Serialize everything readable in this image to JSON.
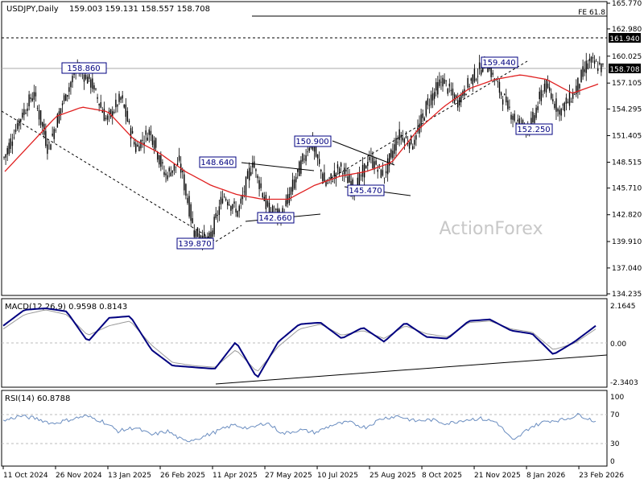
{
  "header": {
    "symbol": "USDJPY,Daily",
    "ohlc": "159.003 159.131 158.557 158.708"
  },
  "watermark": "ActionForex",
  "colors": {
    "candles": "#000000",
    "ma": "#e02020",
    "macd": "#000080",
    "signal": "#999999",
    "rsi": "#6a8dc0",
    "label_border": "#000080",
    "price_tag_bg": "#000000"
  },
  "chart_data": [
    {
      "type": "candlestick",
      "ylim": [
        134.235,
        165.77
      ],
      "y_ticks": [
        "165.770",
        "162.980",
        "160.025",
        "157.105",
        "154.295",
        "151.405",
        "148.515",
        "145.710",
        "142.820",
        "139.910",
        "137.040",
        "134.235"
      ],
      "price_tag": "158.708",
      "hline_tags": [
        "161.940"
      ],
      "fe_label": "FE 61.8",
      "annotations": [
        "158.860",
        "139.870",
        "148.640",
        "142.660",
        "150.900",
        "145.470",
        "159.440",
        "152.250"
      ],
      "x_ticks": [
        "11 Oct 2024",
        "26 Nov 2024",
        "13 Jan 2025",
        "26 Feb 2025",
        "11 Apr 2025",
        "27 May 2025",
        "10 Jul 2025",
        "25 Aug 2025",
        "8 Oct 2025",
        "21 Nov 2025",
        "8 Jan 2026",
        "23 Feb 2026"
      ],
      "close_path": [
        149.0,
        153.0,
        156.0,
        150.0,
        155.0,
        158.86,
        157.0,
        153.0,
        155.5,
        150.0,
        152.0,
        147.0,
        148.5,
        141.0,
        139.87,
        145.0,
        143.0,
        148.64,
        143.5,
        142.66,
        147.0,
        150.9,
        146.0,
        148.0,
        145.47,
        149.0,
        147.0,
        151.5,
        150.5,
        155.0,
        157.5,
        155.0,
        157.5,
        159.44,
        156.0,
        153.0,
        152.25,
        157.0,
        154.0,
        156.0,
        159.5,
        158.7
      ],
      "ma_path": [
        147.5,
        150.5,
        153.5,
        154.5,
        154.0,
        151.0,
        149.5,
        147.5,
        146.0,
        145.0,
        144.5,
        144.5,
        146.0,
        147.0,
        147.5,
        148.5,
        152.0,
        154.5,
        156.5,
        157.5,
        158.0,
        157.5,
        156.0,
        157.0
      ],
      "ma_label": ""
    },
    {
      "type": "line",
      "title": "MACD(12,26,9) 0.9598 0.8143",
      "ylim": [
        -2.75,
        2.6
      ],
      "y_ticks": [
        "2.1645",
        "0.00",
        "-2.3403"
      ],
      "macd": [
        1.0,
        2.0,
        2.1,
        1.9,
        0.0,
        1.5,
        1.6,
        -0.5,
        -1.5,
        -1.6,
        -1.7,
        0.0,
        -2.3,
        0.0,
        1.1,
        1.2,
        0.2,
        0.9,
        0.0,
        1.2,
        0.3,
        0.2,
        1.3,
        1.4,
        0.7,
        0.5,
        -0.8,
        0.0,
        1.0
      ],
      "signal": [
        0.8,
        1.7,
        2.0,
        1.7,
        0.4,
        1.0,
        1.3,
        -0.2,
        -1.3,
        -1.5,
        -1.6,
        -0.5,
        -1.9,
        -0.3,
        0.8,
        1.1,
        0.4,
        0.7,
        0.2,
        1.0,
        0.5,
        0.3,
        1.2,
        1.3,
        0.8,
        0.6,
        -0.5,
        -0.1,
        0.8
      ]
    },
    {
      "type": "line",
      "title": "RSI(14) 60.8788",
      "ylim": [
        0,
        100
      ],
      "y_ticks": [
        "100",
        "70",
        "30",
        "0"
      ],
      "rsi": [
        62,
        70,
        66,
        58,
        64,
        70,
        62,
        46,
        52,
        40,
        46,
        30,
        36,
        46,
        56,
        50,
        60,
        42,
        48,
        44,
        56,
        60,
        52,
        66,
        70,
        62,
        64,
        58,
        64,
        66,
        60,
        30,
        52,
        62,
        64,
        72,
        61
      ]
    }
  ]
}
